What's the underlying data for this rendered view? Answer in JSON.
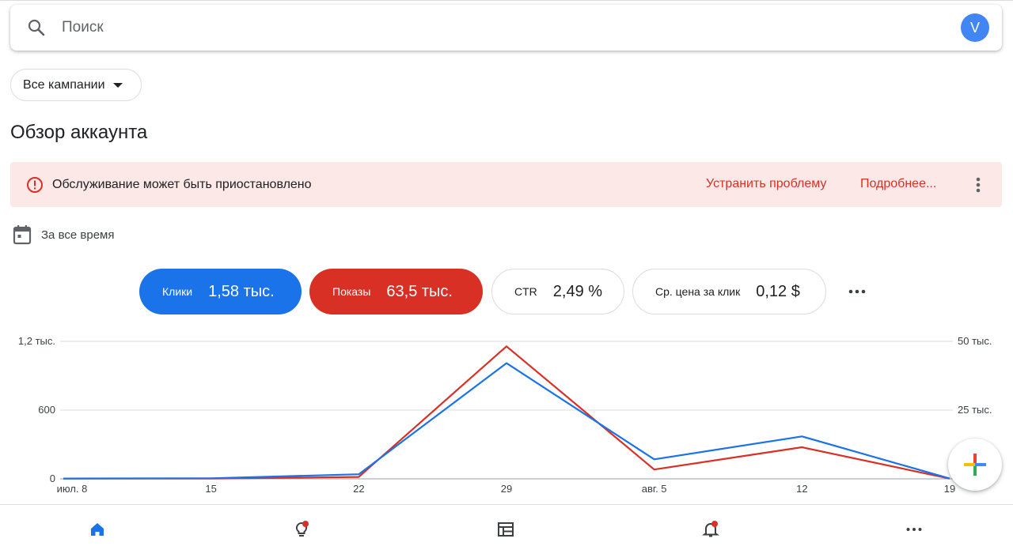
{
  "search": {
    "placeholder": "Поиск"
  },
  "user": {
    "avatar_letter": "V"
  },
  "campaign_selector": {
    "label": "Все кампании"
  },
  "page": {
    "title": "Обзор аккаунта"
  },
  "alert": {
    "message": "Обслуживание может быть приостановлено",
    "fix_label": "Устранить проблему",
    "more_label": "Подробнее..."
  },
  "date_range": {
    "label": "За все время"
  },
  "metrics": [
    {
      "name": "Клики",
      "value": "1,58 тыс.",
      "color": "#1a73e8",
      "selected": true
    },
    {
      "name": "Показы",
      "value": "63,5 тыс.",
      "color": "#d93025",
      "selected": true
    },
    {
      "name": "CTR",
      "value": "2,49 %",
      "selected": false
    },
    {
      "name": "Ср. цена за клик",
      "value": "0,12 $",
      "selected": false
    }
  ],
  "chart_data": {
    "type": "line",
    "x": [
      "июл. 8",
      "15",
      "22",
      "29",
      "авг. 5",
      "12",
      "19"
    ],
    "left_axis": {
      "ticks": [
        "0",
        "600",
        "1,2 тыс."
      ],
      "ylim": [
        0,
        1200
      ]
    },
    "right_axis": {
      "ticks": [
        "25 тыс.",
        "50 тыс."
      ],
      "ylim": [
        0,
        50000
      ]
    },
    "grid": true,
    "series": [
      {
        "name": "Клики",
        "color": "#1a73e8",
        "axis": "left",
        "values": [
          3,
          5,
          40,
          1010,
          170,
          370,
          3
        ]
      },
      {
        "name": "Показы",
        "color": "#d93025",
        "axis": "right",
        "values": [
          100,
          100,
          700,
          48200,
          3400,
          11500,
          100
        ]
      }
    ]
  },
  "bottom_nav": {
    "items": [
      {
        "icon": "home-icon",
        "active": true
      },
      {
        "icon": "lightbulb-icon",
        "badge": true
      },
      {
        "icon": "table-icon"
      },
      {
        "icon": "bell-icon",
        "badge": true
      },
      {
        "icon": "more-horiz-icon"
      }
    ]
  },
  "colors": {
    "accent": "#1a73e8",
    "error": "#d93025",
    "alert_bg": "#fce8e6"
  }
}
